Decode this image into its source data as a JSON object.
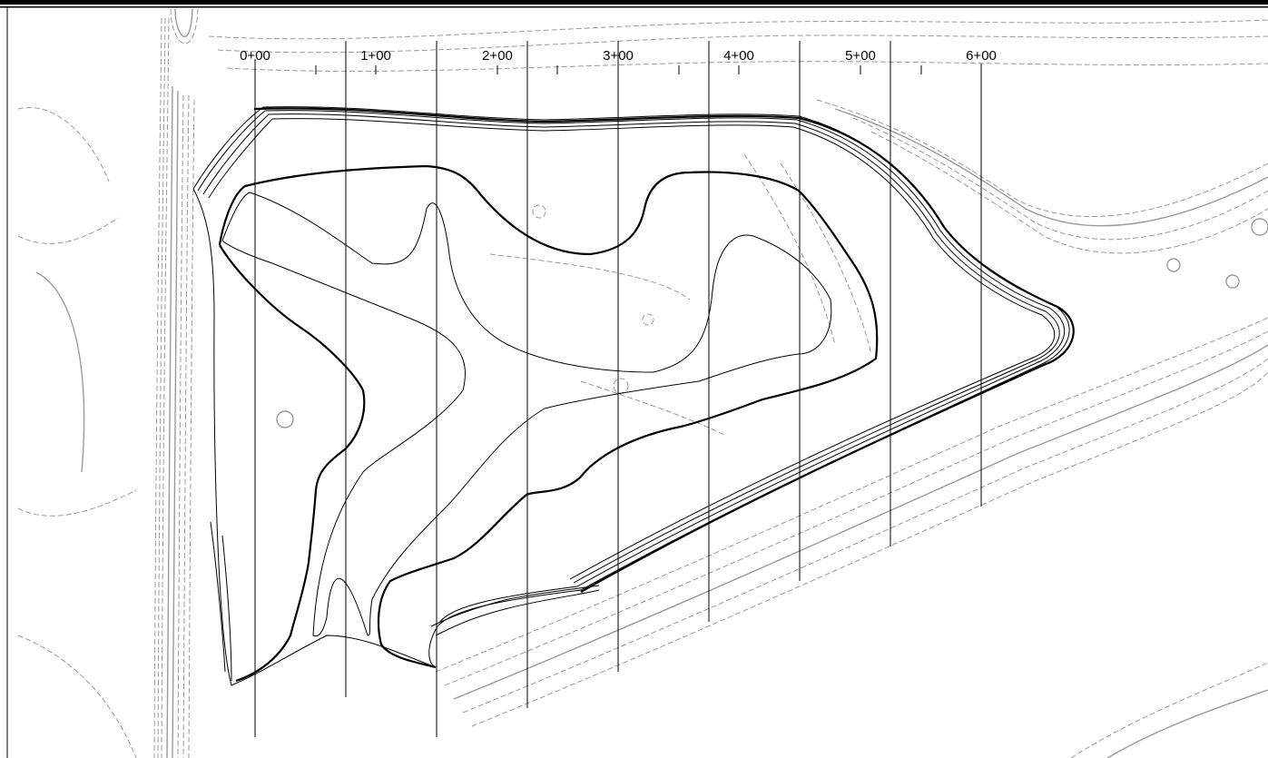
{
  "stations": [
    "0+00",
    "1+00",
    "2+00",
    "3+00",
    "4+00",
    "5+00",
    "6+00"
  ],
  "colors": {
    "background": "#ffffff",
    "existing_contours": "#9a9a9a",
    "proposed_contours": "#000000",
    "section_lines": "#000000"
  }
}
